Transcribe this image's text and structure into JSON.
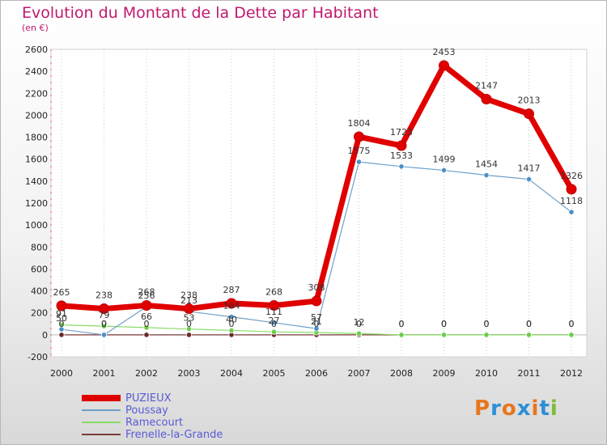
{
  "header": {
    "title": "Evolution du Montant de la Dette par Habitant",
    "unit": "(en €)"
  },
  "logo": {
    "text": "Proxiti",
    "colors": [
      "#e8761e",
      "#2c8fd6",
      "#e8761e",
      "#2c8fd6",
      "#e8761e",
      "#2c8fd6",
      "#7bbd3a"
    ]
  },
  "chart_data": {
    "type": "line",
    "title": "Evolution du Montant de la Dette par Habitant",
    "subtitle": "(en €)",
    "xlabel": "",
    "ylabel": "",
    "categories": [
      "2000",
      "2001",
      "2002",
      "2003",
      "2004",
      "2005",
      "2006",
      "2007",
      "2008",
      "2009",
      "2010",
      "2011",
      "2012"
    ],
    "ylim": [
      -200,
      2600
    ],
    "yticks": [
      -200,
      0,
      200,
      400,
      600,
      800,
      1000,
      1200,
      1400,
      1600,
      1800,
      2000,
      2200,
      2400,
      2600
    ],
    "grid": "vertical-dotted",
    "legend_position": "bottom-left",
    "series": [
      {
        "name": "PUZIEUX",
        "color": "#e00000",
        "width": 7,
        "values": [
          265,
          238,
          268,
          238,
          287,
          268,
          308,
          1804,
          1723,
          2453,
          2147,
          2013,
          1326
        ]
      },
      {
        "name": "Poussay",
        "color": "#6ea0c8",
        "width": 1.2,
        "values": [
          50,
          0,
          256,
          213,
          164,
          111,
          57,
          1575,
          1533,
          1499,
          1454,
          1417,
          1118
        ]
      },
      {
        "name": "Ramecourt",
        "color": "#88dd66",
        "width": 1.2,
        "values": [
          91,
          79,
          66,
          53,
          40,
          27,
          21,
          12,
          0,
          0,
          0,
          0,
          0
        ]
      },
      {
        "name": "Frenelle-la-Grande",
        "color": "#7a3a3a",
        "width": 1.2,
        "values": [
          0,
          0,
          0,
          0,
          0,
          0,
          0,
          0,
          0,
          0,
          0,
          0,
          0
        ]
      }
    ],
    "point_labels": [
      [
        "265",
        "238",
        "268",
        "238",
        "287",
        "268",
        "308",
        "1804",
        "1723",
        "2453",
        "2147",
        "2013",
        "1326"
      ],
      [
        "50",
        "0",
        "256",
        "213",
        "164",
        "111",
        "57",
        "1575",
        "1533",
        "1499",
        "1454",
        "1417",
        "1118"
      ],
      [
        "91",
        "79",
        "66",
        "53",
        "40",
        "27",
        "21",
        "12",
        "0",
        "0",
        "0",
        "0",
        "0"
      ],
      [
        "0",
        "0",
        "0",
        "0",
        "0",
        "0",
        "0",
        "0",
        "0",
        "0",
        "0",
        "0",
        "0"
      ]
    ]
  }
}
